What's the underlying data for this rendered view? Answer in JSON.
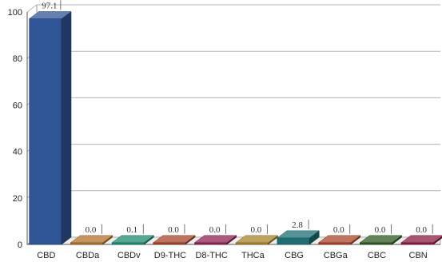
{
  "chart_data": {
    "type": "bar",
    "categories": [
      "CBD",
      "CBDa",
      "CBDv",
      "D9-THC",
      "D8-THC",
      "THCa",
      "CBG",
      "CBGa",
      "CBC",
      "CBN"
    ],
    "values": [
      97.1,
      0.0,
      0.1,
      0.0,
      0.0,
      0.0,
      2.8,
      0.0,
      0.0,
      0.0
    ],
    "data_labels": [
      "97.1",
      "0.0",
      "0.1",
      "0.0",
      "0.0",
      "0.0",
      "2.8",
      "0.0",
      "0.0",
      "0.0"
    ],
    "colors": [
      "#2f5597",
      "#b0702c",
      "#1e8a70",
      "#a3462a",
      "#8e2452",
      "#a7832c",
      "#1e6f73",
      "#a8452a",
      "#2f5a23",
      "#8b1d3f"
    ],
    "title": "",
    "xlabel": "",
    "ylabel": "",
    "ylim": [
      0,
      100
    ],
    "yticks": [
      0,
      20,
      40,
      60,
      80,
      100
    ],
    "grid": true,
    "style": "3d"
  }
}
